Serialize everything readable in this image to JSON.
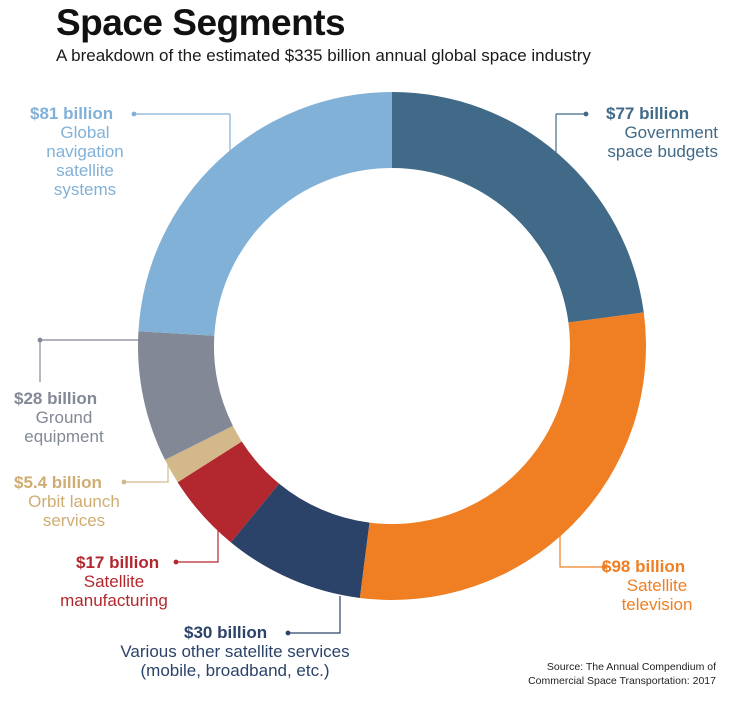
{
  "title": "Space Segments",
  "subtitle": "A breakdown of the estimated $335 billion annual global space industry",
  "source": "Source: The Annual Compendium of\nCommercial Space Transportation: 2017",
  "chart_data": {
    "type": "pie",
    "style": "donut",
    "title": "Space Segments",
    "subtitle": "A breakdown of the estimated $335 billion annual global space industry",
    "total": 335,
    "unit": "billion USD",
    "slices": [
      {
        "amount_label": "$77 billion",
        "description": "Government\nspace budgets",
        "value": 77,
        "color": "#406a87"
      },
      {
        "amount_label": "$98 billion",
        "description": "Satellite\ntelevision",
        "value": 98,
        "color": "#f07f23"
      },
      {
        "amount_label": "$30 billion",
        "description": "Various other satellite services\n(mobile, broadband, etc.)",
        "value": 30,
        "color": "#2b4369"
      },
      {
        "amount_label": "$17 billion",
        "description": "Satellite\nmanufacturing",
        "value": 17,
        "color": "#b3282f"
      },
      {
        "amount_label": "$5.4 billion",
        "description": "Orbit launch\nservices",
        "value": 5.4,
        "color": "#d3b98a"
      },
      {
        "amount_label": "$28 billion",
        "description": "Ground\nequipment",
        "value": 28,
        "color": "#828896"
      },
      {
        "amount_label": "$81 billion",
        "description": "Global\nnavigation\nsatellite\nsystems",
        "value": 81,
        "color": "#82b1d8"
      }
    ]
  }
}
